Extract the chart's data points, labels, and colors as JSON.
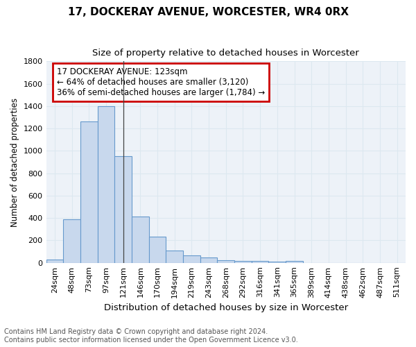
{
  "title": "17, DOCKERAY AVENUE, WORCESTER, WR4 0RX",
  "subtitle": "Size of property relative to detached houses in Worcester",
  "xlabel": "Distribution of detached houses by size in Worcester",
  "ylabel": "Number of detached properties",
  "categories": [
    "24sqm",
    "48sqm",
    "73sqm",
    "97sqm",
    "121sqm",
    "146sqm",
    "170sqm",
    "194sqm",
    "219sqm",
    "243sqm",
    "268sqm",
    "292sqm",
    "316sqm",
    "341sqm",
    "365sqm",
    "389sqm",
    "414sqm",
    "438sqm",
    "462sqm",
    "487sqm",
    "511sqm"
  ],
  "values": [
    28,
    390,
    1260,
    1400,
    950,
    415,
    235,
    112,
    68,
    48,
    20,
    15,
    18,
    8,
    18,
    0,
    0,
    0,
    0,
    0,
    0
  ],
  "bar_color": "#c8d8ed",
  "bar_edge_color": "#6699cc",
  "grid_color": "#dce8f0",
  "bg_color": "#edf2f8",
  "vline_x_index": 4,
  "annotation_line1": "17 DOCKERAY AVENUE: 123sqm",
  "annotation_line2": "← 64% of detached houses are smaller (3,120)",
  "annotation_line3": "36% of semi-detached houses are larger (1,784) →",
  "annotation_box_color": "#ffffff",
  "annotation_edge_color": "#cc0000",
  "footnote": "Contains HM Land Registry data © Crown copyright and database right 2024.\nContains public sector information licensed under the Open Government Licence v3.0.",
  "ylim": [
    0,
    1800
  ],
  "yticks": [
    0,
    200,
    400,
    600,
    800,
    1000,
    1200,
    1400,
    1600,
    1800
  ],
  "title_fontsize": 11,
  "subtitle_fontsize": 9.5,
  "xlabel_fontsize": 9.5,
  "ylabel_fontsize": 8.5,
  "footnote_fontsize": 7,
  "annotation_fontsize": 8.5,
  "tick_fontsize": 8
}
